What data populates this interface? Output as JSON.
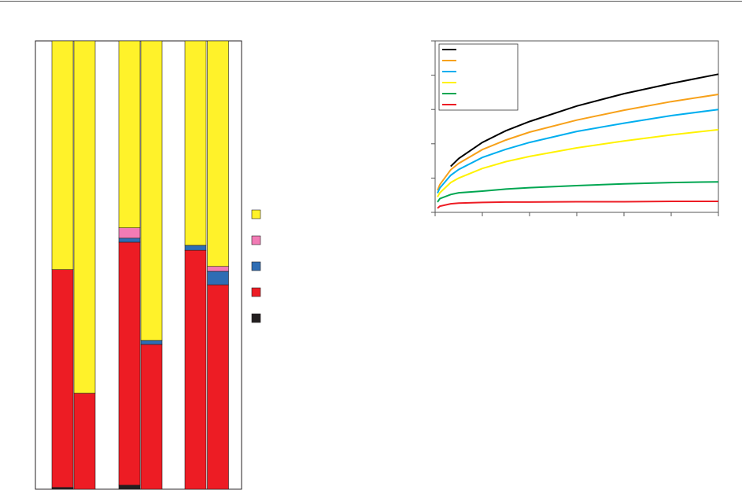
{
  "chart_data": [
    {
      "type": "stacked_bar",
      "categories": [
        null,
        null,
        null,
        null,
        null,
        null
      ],
      "ylim": [
        0,
        100
      ],
      "series": [
        {
          "color": "#231f20",
          "values": [
            0.4,
            0,
            0.9,
            0,
            0,
            0
          ]
        },
        {
          "color": "#ed1c24",
          "values": [
            48.6,
            21.4,
            54.2,
            32.3,
            53.3,
            45.6
          ]
        },
        {
          "color": "#2e6db4",
          "values": [
            0,
            0,
            0.9,
            0.9,
            1.1,
            3.0
          ]
        },
        {
          "color": "#f27bb5",
          "values": [
            0,
            0,
            2.3,
            0,
            0,
            1.1
          ]
        },
        {
          "color": "#fff22a",
          "values": [
            51.0,
            78.6,
            41.7,
            66.8,
            45.6,
            50.3
          ]
        }
      ]
    },
    {
      "type": "line",
      "x": [
        0.05,
        0.1,
        0.33,
        0.5,
        1,
        1.5,
        2,
        3,
        4,
        5,
        6
      ],
      "xlim": [
        0,
        6
      ],
      "xticks": [
        0,
        1,
        2,
        3,
        4,
        5,
        6
      ],
      "ylim": [
        0,
        5
      ],
      "yticks": [
        0,
        1,
        2,
        3,
        4,
        5
      ],
      "legend": "upper left",
      "series": [
        {
          "color": "#000000",
          "values": [
            null,
            null,
            1.34,
            1.57,
            2.04,
            2.38,
            2.65,
            3.1,
            3.46,
            3.76,
            4.03
          ]
        },
        {
          "color": "#f7a11a",
          "values": [
            0.64,
            0.81,
            1.24,
            1.43,
            1.83,
            2.11,
            2.34,
            2.69,
            2.98,
            3.23,
            3.44
          ]
        },
        {
          "color": "#00aeef",
          "values": [
            0.56,
            0.71,
            1.08,
            1.25,
            1.6,
            1.84,
            2.04,
            2.36,
            2.6,
            2.82,
            3.0
          ]
        },
        {
          "color": "#fff200",
          "values": [
            0.45,
            0.57,
            0.87,
            1.0,
            1.28,
            1.48,
            1.63,
            1.88,
            2.08,
            2.26,
            2.41
          ]
        },
        {
          "color": "#00a651",
          "values": [
            0.3,
            0.4,
            0.52,
            0.57,
            0.62,
            0.68,
            0.72,
            0.78,
            0.83,
            0.87,
            0.89
          ]
        },
        {
          "color": "#ed1c24",
          "values": [
            0.12,
            0.18,
            0.25,
            0.27,
            0.29,
            0.3,
            0.3,
            0.31,
            0.31,
            0.32,
            0.32
          ]
        }
      ]
    }
  ]
}
